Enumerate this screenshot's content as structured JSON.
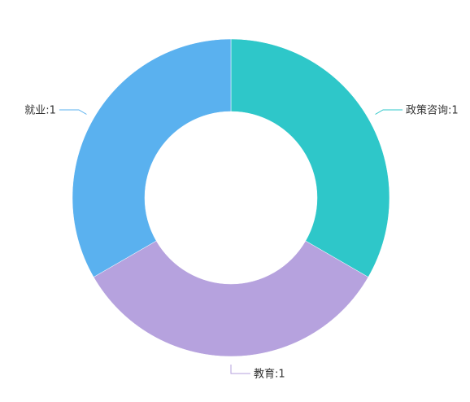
{
  "chart_data": {
    "type": "pie",
    "variant": "donut",
    "title": "",
    "label_separator": ":",
    "slices": [
      {
        "name": "政策咨询",
        "value": 1,
        "color": "#2ec7c9"
      },
      {
        "name": "教育",
        "value": 1,
        "color": "#b6a2de"
      },
      {
        "name": "就业",
        "value": 1,
        "color": "#5ab1ef"
      }
    ],
    "start_angle_deg": 90,
    "direction": "clockwise",
    "legend": "none",
    "labels": "outside-with-leader-lines"
  }
}
